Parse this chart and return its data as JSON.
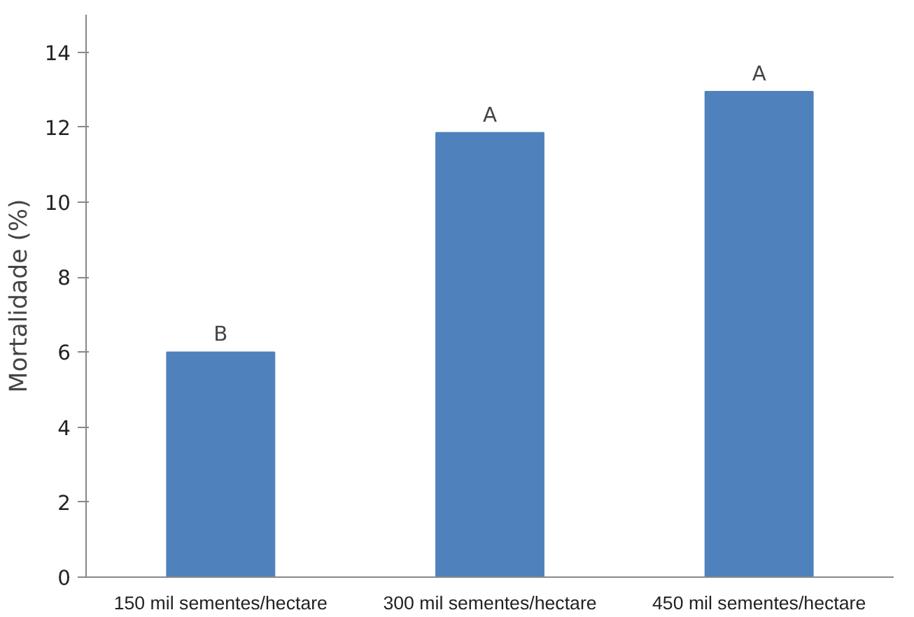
{
  "chart_data": {
    "type": "bar",
    "ylabel": "Mortalidade (%)",
    "categories": [
      "150 mil sementes/hectare",
      "300 mil sementes/hectare",
      "450 mil sementes/hectare"
    ],
    "values": [
      6.0,
      11.85,
      12.95
    ],
    "color": "#4f81bd",
    "ylim": [
      0,
      15
    ],
    "yticks": [
      0,
      2,
      4,
      6,
      8,
      10,
      12,
      14
    ],
    "grid": false,
    "annotations": [
      {
        "text": "B",
        "x": "150 mil sementes/hectare",
        "y": 6.0
      },
      {
        "text": "A",
        "x": "300 mil sementes/hectare",
        "y": 11.85
      },
      {
        "text": "A",
        "x": "450 mil sementes/hectare",
        "y": 12.95
      }
    ]
  }
}
